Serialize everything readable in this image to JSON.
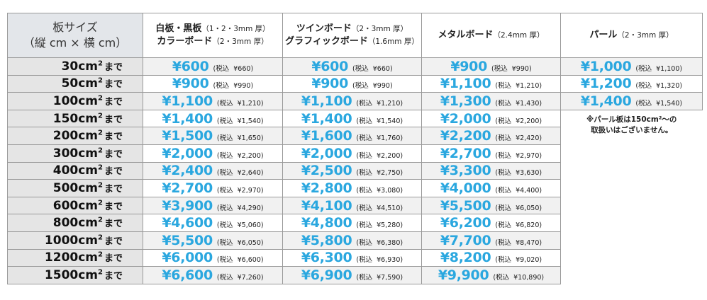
{
  "header": {
    "size": [
      "板サイズ",
      "（縦 cm × 横 cm）"
    ],
    "col1": {
      "line1": "白板・黒板",
      "line1_small": "（1・2・3mm 厚）",
      "line2": "カラーボード",
      "line2_small": "（2・3mm 厚）"
    },
    "col2": {
      "line1": "ツインボード",
      "line1_small": "（2・3mm 厚）",
      "line2": "グラフィックボード",
      "line2_small": "（1.6mm 厚）"
    },
    "col3": {
      "line1": "メタルボード",
      "line1_small": "（2.4mm 厚）"
    },
    "col4": {
      "line1": "パール",
      "line1_small": "（2・3mm 厚）"
    }
  },
  "tax_label": "税込",
  "unit_sup": "2",
  "made_suffix": "まで",
  "note": [
    "※パール板は150cm²〜の",
    "取扱いはございません。"
  ],
  "rows": [
    {
      "size": "30cm",
      "p": [
        [
          "¥600",
          "¥660"
        ],
        [
          "¥600",
          "¥660"
        ],
        [
          "¥900",
          "¥990"
        ],
        [
          "¥1,000",
          "¥1,100"
        ]
      ]
    },
    {
      "size": "50cm",
      "p": [
        [
          "¥900",
          "¥990"
        ],
        [
          "¥900",
          "¥990"
        ],
        [
          "¥1,100",
          "¥1,210"
        ],
        [
          "¥1,200",
          "¥1,320"
        ]
      ]
    },
    {
      "size": "100cm",
      "p": [
        [
          "¥1,100",
          "¥1,210"
        ],
        [
          "¥1,100",
          "¥1,210"
        ],
        [
          "¥1,300",
          "¥1,430"
        ],
        [
          "¥1,400",
          "¥1,540"
        ]
      ]
    },
    {
      "size": "150cm",
      "p": [
        [
          "¥1,400",
          "¥1,540"
        ],
        [
          "¥1,400",
          "¥1,540"
        ],
        [
          "¥2,000",
          "¥2,200"
        ]
      ]
    },
    {
      "size": "200cm",
      "p": [
        [
          "¥1,500",
          "¥1,650"
        ],
        [
          "¥1,600",
          "¥1,760"
        ],
        [
          "¥2,200",
          "¥2,420"
        ]
      ]
    },
    {
      "size": "300cm",
      "p": [
        [
          "¥2,000",
          "¥2,200"
        ],
        [
          "¥2,000",
          "¥2,200"
        ],
        [
          "¥2,700",
          "¥2,970"
        ]
      ]
    },
    {
      "size": "400cm",
      "p": [
        [
          "¥2,400",
          "¥2,640"
        ],
        [
          "¥2,500",
          "¥2,750"
        ],
        [
          "¥3,300",
          "¥3,630"
        ]
      ]
    },
    {
      "size": "500cm",
      "p": [
        [
          "¥2,700",
          "¥2,970"
        ],
        [
          "¥2,800",
          "¥3,080"
        ],
        [
          "¥4,000",
          "¥4,400"
        ]
      ]
    },
    {
      "size": "600cm",
      "p": [
        [
          "¥3,900",
          "¥4,290"
        ],
        [
          "¥4,100",
          "¥4,510"
        ],
        [
          "¥5,500",
          "¥6,050"
        ]
      ]
    },
    {
      "size": "800cm",
      "p": [
        [
          "¥4,600",
          "¥5,060"
        ],
        [
          "¥4,800",
          "¥5,280"
        ],
        [
          "¥6,200",
          "¥6,820"
        ]
      ]
    },
    {
      "size": "1000cm",
      "p": [
        [
          "¥5,500",
          "¥6,050"
        ],
        [
          "¥5,800",
          "¥6,380"
        ],
        [
          "¥7,700",
          "¥8,470"
        ]
      ]
    },
    {
      "size": "1200cm",
      "p": [
        [
          "¥6,000",
          "¥6,600"
        ],
        [
          "¥6,300",
          "¥6,930"
        ],
        [
          "¥8,200",
          "¥9,020"
        ]
      ]
    },
    {
      "size": "1500cm",
      "p": [
        [
          "¥6,600",
          "¥7,260"
        ],
        [
          "¥6,900",
          "¥7,590"
        ],
        [
          "¥9,900",
          "¥10,890"
        ]
      ]
    }
  ],
  "colors": {
    "price_blue": "#2aa7df",
    "size_bg": "#e5e5e5",
    "header_bg": "#e3e6ea"
  }
}
